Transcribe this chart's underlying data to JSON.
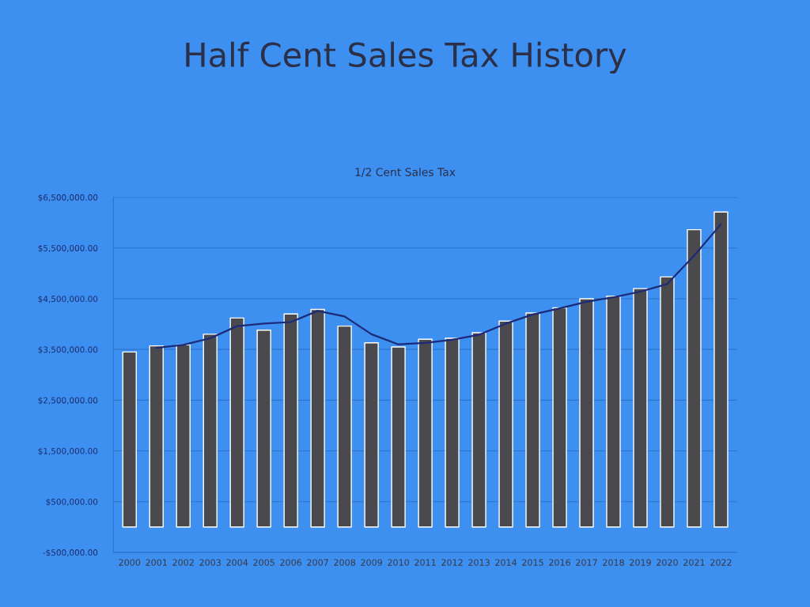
{
  "chart_data": {
    "type": "bar",
    "title": "Half Cent Sales Tax History",
    "subtitle": "1/2 Cent Sales Tax",
    "categories": [
      "2000",
      "2001",
      "2002",
      "2003",
      "2004",
      "2005",
      "2006",
      "2007",
      "2008",
      "2009",
      "2010",
      "2011",
      "2012",
      "2013",
      "2014",
      "2015",
      "2016",
      "2017",
      "2018",
      "2019",
      "2020",
      "2021",
      "2022"
    ],
    "series": [
      {
        "color": "#4a4a4e",
        "values": [
          3450000,
          3570000,
          3590000,
          3800000,
          4120000,
          3880000,
          4200000,
          4290000,
          3960000,
          3630000,
          3550000,
          3700000,
          3720000,
          3830000,
          4060000,
          4220000,
          4320000,
          4500000,
          4550000,
          4700000,
          4930000,
          5860000,
          6210000
        ]
      },
      {
        "type": "line",
        "color": "#1c2a78",
        "values": [
          null,
          3530000,
          3590000,
          3720000,
          3960000,
          4010000,
          4040000,
          4260000,
          4150000,
          3800000,
          3600000,
          3630000,
          3690000,
          3790000,
          4010000,
          4190000,
          4310000,
          4440000,
          4530000,
          4640000,
          4790000,
          5350000,
          5970000
        ]
      }
    ],
    "ylim": [
      -500000,
      6500000
    ],
    "yticks": [
      {
        "value": -500000,
        "label": "-$500,000.00"
      },
      {
        "value": 500000,
        "label": "$500,000.00"
      },
      {
        "value": 1500000,
        "label": "$1,500,000.00"
      },
      {
        "value": 2500000,
        "label": "$2,500,000.00"
      },
      {
        "value": 3500000,
        "label": "$3,500,000.00"
      },
      {
        "value": 4500000,
        "label": "$4,500,000.00"
      },
      {
        "value": 5500000,
        "label": "$5,500,000.00"
      },
      {
        "value": 6500000,
        "label": "$6,500,000.00"
      }
    ],
    "grid": "y"
  }
}
